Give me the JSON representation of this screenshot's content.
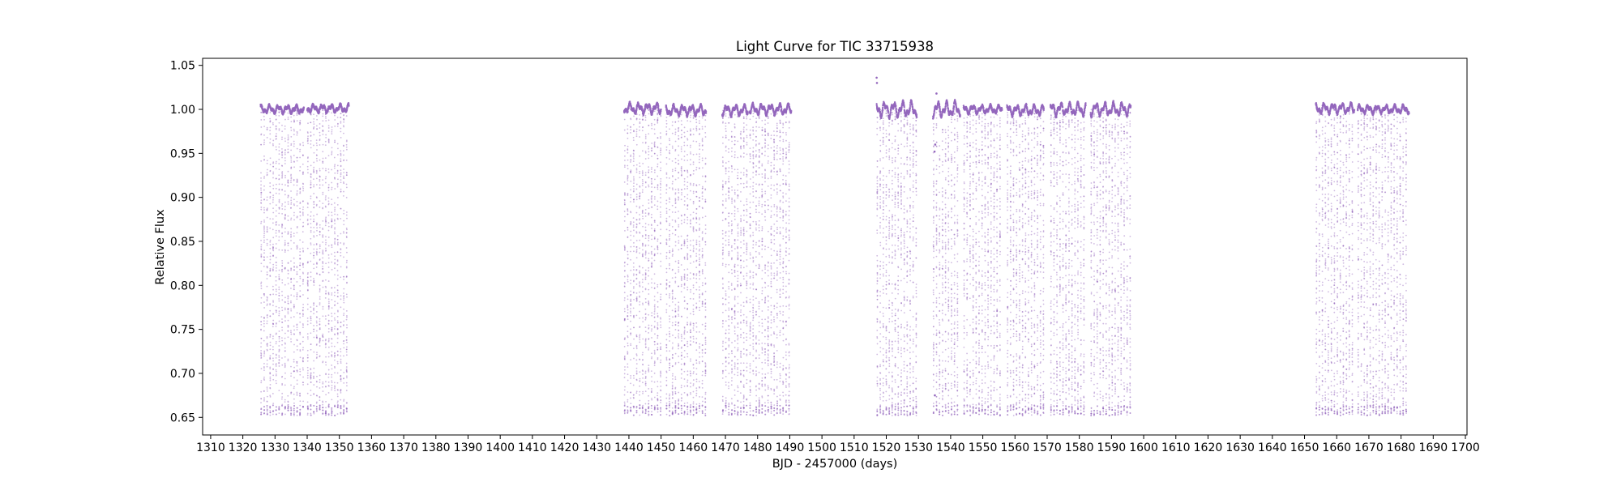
{
  "chart_data": {
    "type": "scatter",
    "title": "Light Curve for TIC 33715938",
    "xlabel": "BJD - 2457000 (days)",
    "ylabel": "Relative Flux",
    "xlim": [
      1307.5,
      1700.5
    ],
    "ylim": [
      0.63,
      1.058
    ],
    "x_ticks": [
      1310,
      1320,
      1330,
      1340,
      1350,
      1360,
      1370,
      1380,
      1390,
      1400,
      1410,
      1420,
      1430,
      1440,
      1450,
      1460,
      1470,
      1480,
      1490,
      1500,
      1510,
      1520,
      1530,
      1540,
      1550,
      1560,
      1570,
      1580,
      1590,
      1600,
      1610,
      1620,
      1630,
      1640,
      1650,
      1660,
      1670,
      1680,
      1690,
      1700
    ],
    "y_ticks": [
      0.65,
      0.7,
      0.75,
      0.8,
      0.85,
      0.9,
      0.95,
      1.0,
      1.05
    ],
    "grid": false,
    "marker_color": "#9467bd",
    "series": [
      {
        "baseline_flux": 1.0,
        "dip_flux_min": 0.652,
        "segments": [
          {
            "start": 1325.5,
            "end": 1339.0,
            "baseline": 1.0,
            "amp": 0.003
          },
          {
            "start": 1340.0,
            "end": 1353.0,
            "baseline": 1.001,
            "amp": 0.003
          },
          {
            "start": 1438.5,
            "end": 1450.0,
            "baseline": 1.001,
            "amp": 0.004
          },
          {
            "start": 1451.5,
            "end": 1464.0,
            "baseline": 0.999,
            "amp": 0.004
          },
          {
            "start": 1469.0,
            "end": 1477.0,
            "baseline": 0.999,
            "amp": 0.004
          },
          {
            "start": 1477.5,
            "end": 1490.5,
            "baseline": 1.0,
            "amp": 0.004
          },
          {
            "start": 1517.0,
            "end": 1529.5,
            "baseline": 1.0,
            "amp": 0.006
          },
          {
            "start": 1534.5,
            "end": 1543.0,
            "baseline": 1.0,
            "amp": 0.006
          },
          {
            "start": 1544.0,
            "end": 1556.0,
            "baseline": 1.0,
            "amp": 0.003
          },
          {
            "start": 1557.5,
            "end": 1569.0,
            "baseline": 0.999,
            "amp": 0.004
          },
          {
            "start": 1571.0,
            "end": 1582.0,
            "baseline": 1.0,
            "amp": 0.005
          },
          {
            "start": 1583.5,
            "end": 1596.0,
            "baseline": 1.0,
            "amp": 0.005
          },
          {
            "start": 1653.5,
            "end": 1665.5,
            "baseline": 1.001,
            "amp": 0.004
          },
          {
            "start": 1666.5,
            "end": 1682.5,
            "baseline": 1.0,
            "amp": 0.003
          }
        ]
      }
    ]
  }
}
